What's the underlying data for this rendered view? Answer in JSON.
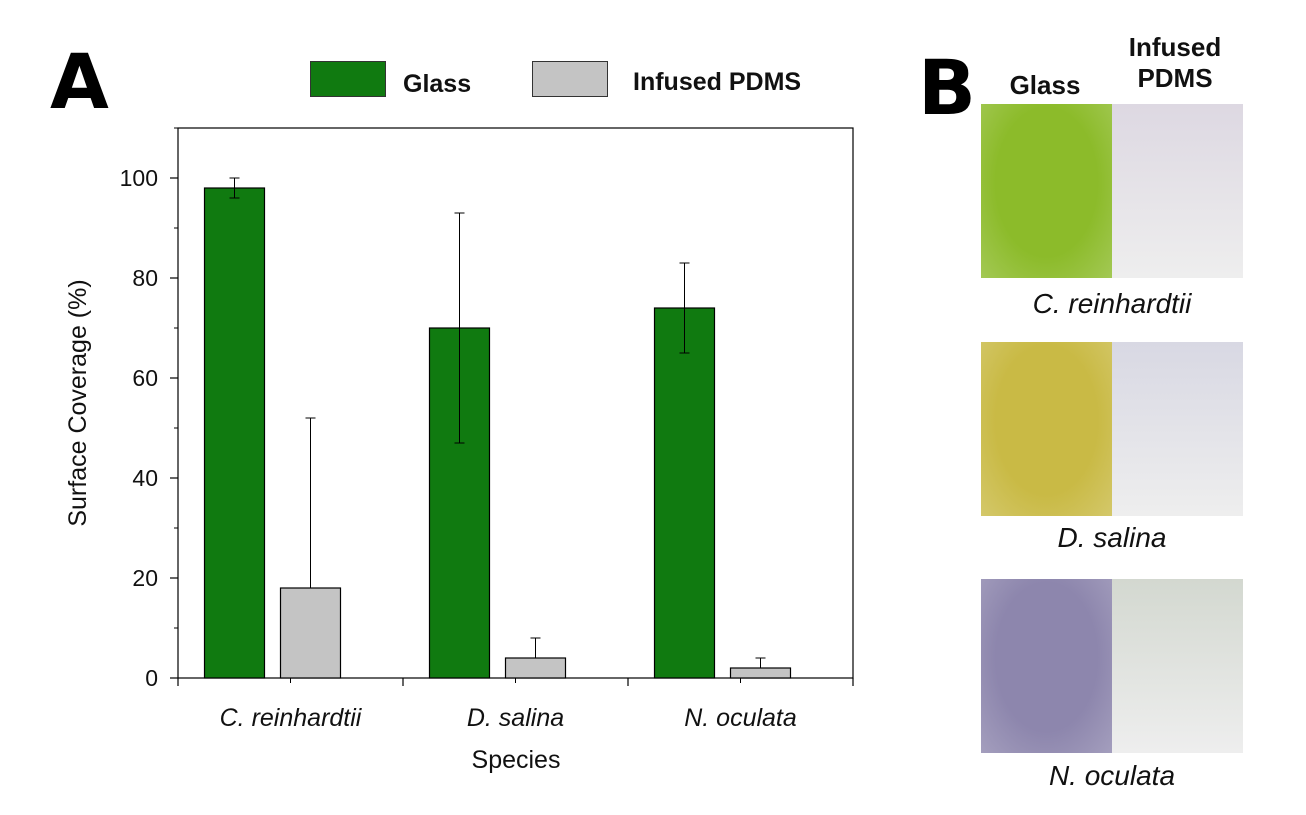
{
  "panel_a": {
    "letter": "A",
    "legend": [
      {
        "label": "Glass",
        "color": "#107a10"
      },
      {
        "label": "Infused PDMS",
        "color": "#c4c4c4"
      }
    ]
  },
  "panel_b": {
    "letter": "B",
    "col_glass": "Glass",
    "col_pdms_line1": "Infused",
    "col_pdms_line2": "PDMS",
    "photos": [
      {
        "caption": "C. reinhardtii",
        "glass_color": "#8cbb2a",
        "pdms_color": "#ddd8e2"
      },
      {
        "caption": "D. salina",
        "glass_color": "#c9ba45",
        "pdms_color": "#d8d8e3"
      },
      {
        "caption": "N. oculata",
        "glass_color": "#8d86ad",
        "pdms_color": "#d3d8d0"
      }
    ]
  },
  "chart_data": {
    "type": "bar",
    "categories": [
      "C. reinhardtii",
      "D. salina",
      "N. oculata"
    ],
    "series": [
      {
        "name": "Glass",
        "color": "#107a10",
        "values": [
          98,
          70,
          74
        ],
        "err_low": [
          96,
          47,
          65
        ],
        "err_high": [
          100,
          93,
          83
        ]
      },
      {
        "name": "Infused PDMS",
        "color": "#c4c4c4",
        "values": [
          18,
          4,
          2
        ],
        "err_low": [
          18,
          4,
          2
        ],
        "err_high": [
          52,
          8,
          4
        ]
      }
    ],
    "xlabel": "Species",
    "ylabel": "Surface Coverage (%)",
    "ylim": [
      0,
      110
    ],
    "yticks": [
      0,
      20,
      40,
      60,
      80,
      100
    ],
    "grid": false,
    "legend_position": "top"
  }
}
